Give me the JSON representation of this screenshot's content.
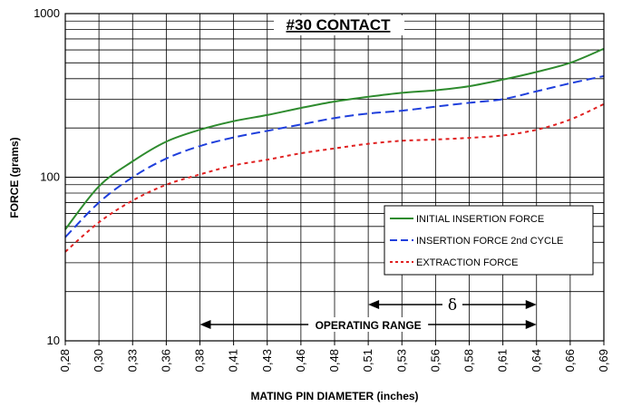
{
  "chart_data": {
    "type": "line",
    "title": "#30 CONTACT",
    "xlabel": "MATING PIN  DIAMETER (inches)",
    "ylabel": "FORCE (grams)",
    "yscale": "log",
    "ylim": [
      10,
      1000
    ],
    "y_ticks": [
      "10",
      "100",
      "1000"
    ],
    "categories": [
      "0,28",
      "0,30",
      "0,33",
      "0,36",
      "0,38",
      "0,41",
      "0,43",
      "0,46",
      "0,48",
      "0,51",
      "0,53",
      "0,56",
      "0,58",
      "0,61",
      "0,64",
      "0,66",
      "0,69"
    ],
    "grid": true,
    "legend_position": "right",
    "series": [
      {
        "name": "INITIAL INSERTION FORCE",
        "color": "#2e8b2e",
        "dash": "solid",
        "values": [
          48,
          88,
          125,
          165,
          195,
          220,
          240,
          265,
          290,
          310,
          328,
          340,
          360,
          395,
          440,
          500,
          610
        ]
      },
      {
        "name": "INSERTION FORCE 2nd CYCLE",
        "color": "#1f3fdc",
        "dash": "dashed",
        "values": [
          43,
          70,
          100,
          130,
          155,
          175,
          192,
          210,
          230,
          245,
          255,
          270,
          285,
          300,
          335,
          375,
          415
        ]
      },
      {
        "name": "EXTRACTION FORCE",
        "color": "#e02020",
        "dash": "dotted",
        "values": [
          35,
          53,
          72,
          90,
          104,
          118,
          128,
          140,
          150,
          160,
          167,
          170,
          174,
          180,
          195,
          225,
          280
        ]
      }
    ],
    "annotations": {
      "operating_range": {
        "label": "OPERATING RANGE",
        "from": "0,38",
        "to": "0,64"
      },
      "delta": {
        "label": "δ",
        "from": "0,51",
        "to": "0,64"
      }
    }
  }
}
